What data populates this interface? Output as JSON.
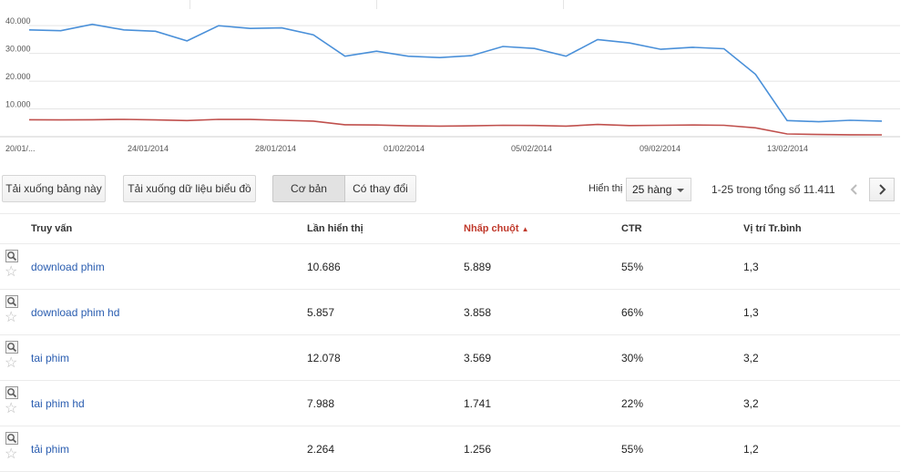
{
  "chart_data": {
    "type": "line",
    "x_labels": [
      "20/01/...",
      "24/01/2014",
      "28/01/2014",
      "01/02/2014",
      "05/02/2014",
      "09/02/2014",
      "13/02/2014"
    ],
    "y_ticks": [
      "40.000",
      "30.000",
      "20.000",
      "10.000"
    ],
    "ylim": [
      0,
      44000
    ],
    "grid": true,
    "series": [
      {
        "color": "#4a90d9",
        "values": [
          38500,
          38200,
          40500,
          38500,
          38000,
          34500,
          40000,
          39000,
          39200,
          36700,
          29000,
          30800,
          29000,
          28500,
          29200,
          32500,
          31800,
          29000,
          35000,
          33800,
          31500,
          32200,
          31700,
          22500,
          5800,
          5400,
          5900,
          5600
        ]
      },
      {
        "color": "#c0504d",
        "values": [
          6100,
          6050,
          6100,
          6250,
          6050,
          5800,
          6250,
          6200,
          5900,
          5600,
          4300,
          4200,
          3900,
          3800,
          3900,
          4100,
          4050,
          3800,
          4400,
          4000,
          4100,
          4200,
          4100,
          3200,
          1000,
          800,
          700,
          650
        ]
      }
    ]
  },
  "toolbar": {
    "download_table": "Tải xuống bảng này",
    "download_chart": "Tải xuống dữ liệu biểu đồ",
    "tab_basic": "Cơ bản",
    "tab_changes": "Có thay đổi",
    "show_label": "Hiển thị",
    "rows_value": "25 hàng",
    "range_text": "1-25 trong tổng số 11.411"
  },
  "table": {
    "headers": {
      "query": "Truy vấn",
      "impressions": "Lần hiển thị",
      "clicks": "Nhấp chuột",
      "ctr": "CTR",
      "position": "Vị trí Tr.bình"
    },
    "sort_indicator": "▲",
    "rows": [
      {
        "query": "download phim",
        "impressions": "10.686",
        "clicks": "5.889",
        "ctr": "55%",
        "position": "1,3"
      },
      {
        "query": "download phim hd",
        "impressions": "5.857",
        "clicks": "3.858",
        "ctr": "66%",
        "position": "1,3"
      },
      {
        "query": "tai phim",
        "impressions": "12.078",
        "clicks": "3.569",
        "ctr": "30%",
        "position": "3,2"
      },
      {
        "query": "tai phim hd",
        "impressions": "7.988",
        "clicks": "1.741",
        "ctr": "22%",
        "position": "3,2"
      },
      {
        "query": "tải phim",
        "impressions": "2.264",
        "clicks": "1.256",
        "ctr": "55%",
        "position": "1,2"
      }
    ]
  }
}
